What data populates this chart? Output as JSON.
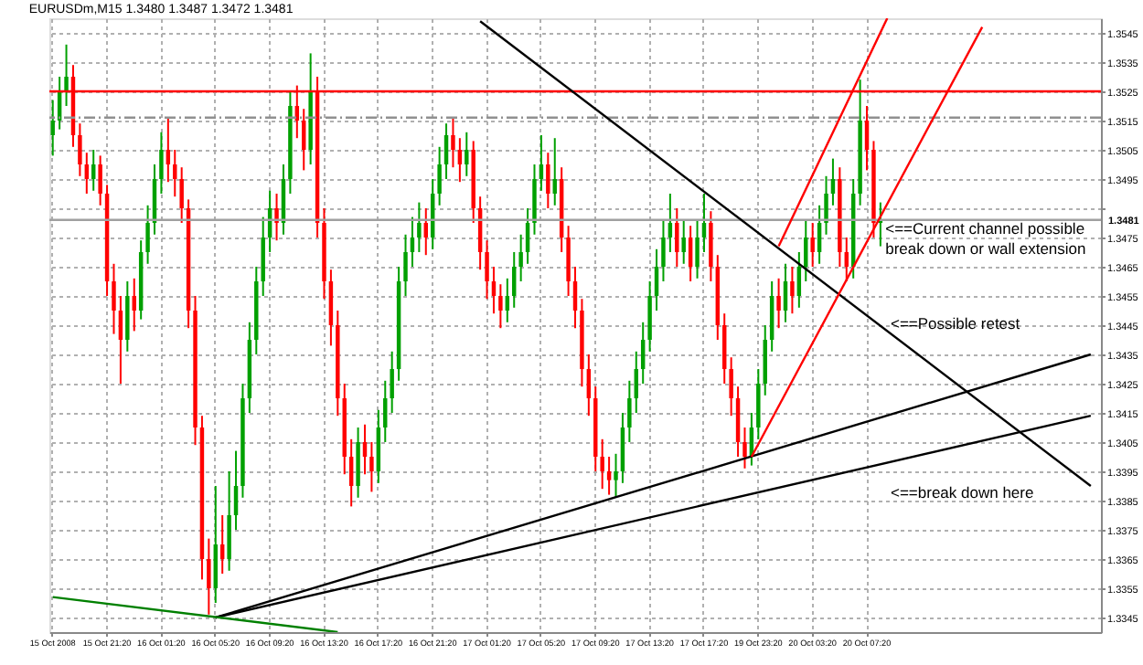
{
  "chart_data": {
    "type": "candlestick",
    "title": "EURUSDm,M15  1.3480 1.3487 1.3472 1.3481",
    "categories": [
      "15 Oct 2008",
      null,
      null,
      null,
      null,
      null,
      null,
      null,
      "15 Oct 21:20",
      null,
      null,
      null,
      null,
      null,
      null,
      null,
      "16 Oct 01:20",
      null,
      null,
      null,
      null,
      null,
      null,
      null,
      "16 Oct 05:20",
      null,
      null,
      null,
      null,
      null,
      null,
      null,
      "16 Oct 09:20",
      null,
      null,
      null,
      null,
      null,
      null,
      null,
      "16 Oct 13:20",
      null,
      null,
      null,
      null,
      null,
      null,
      null,
      "16 Oct 17:20",
      null,
      null,
      null,
      null,
      null,
      null,
      null,
      "16 Oct 21:20",
      null,
      null,
      null,
      null,
      null,
      null,
      null,
      "17 Oct 01:20",
      null,
      null,
      null,
      null,
      null,
      null,
      null,
      "17 Oct 05:20",
      null,
      null,
      null,
      null,
      null,
      null,
      null,
      "17 Oct 09:20",
      null,
      null,
      null,
      null,
      null,
      null,
      null,
      "17 Oct 13:20",
      null,
      null,
      null,
      null,
      null,
      null,
      null,
      "17 Oct 17:20",
      null,
      null,
      null,
      null,
      null,
      null,
      null,
      "19 Oct 23:20",
      null,
      null,
      null,
      null,
      null,
      null,
      null,
      "20 Oct 03:20",
      null,
      null,
      null,
      null,
      null,
      null,
      null,
      "20 Oct 07:20",
      null,
      null,
      null,
      null,
      null,
      null,
      null,
      null,
      null,
      null,
      null,
      null,
      null,
      null,
      null,
      null,
      null,
      null,
      null,
      null,
      null,
      null,
      null,
      null,
      null,
      null,
      null,
      null,
      null,
      null,
      null,
      null,
      null,
      null
    ],
    "ohlc": [
      [
        1.351,
        1.3522,
        1.3503,
        1.3515
      ],
      [
        1.3515,
        1.353,
        1.3512,
        1.3525
      ],
      [
        1.3525,
        1.3541,
        1.352,
        1.353
      ],
      [
        1.353,
        1.3534,
        1.3506,
        1.351
      ],
      [
        1.351,
        1.3514,
        1.3496,
        1.35
      ],
      [
        1.35,
        1.3504,
        1.349,
        1.3495
      ],
      [
        1.3495,
        1.3505,
        1.3491,
        1.35
      ],
      [
        1.35,
        1.3503,
        1.3486,
        1.349
      ],
      [
        1.349,
        1.3493,
        1.3455,
        1.346
      ],
      [
        1.346,
        1.3466,
        1.3442,
        1.345
      ],
      [
        1.345,
        1.3455,
        1.3425,
        1.344
      ],
      [
        1.344,
        1.346,
        1.3436,
        1.3455
      ],
      [
        1.3455,
        1.3461,
        1.3443,
        1.345
      ],
      [
        1.345,
        1.3474,
        1.3447,
        1.347
      ],
      [
        1.347,
        1.3486,
        1.3466,
        1.348
      ],
      [
        1.348,
        1.35,
        1.3476,
        1.3495
      ],
      [
        1.3495,
        1.3511,
        1.349,
        1.3505
      ],
      [
        1.3505,
        1.3516,
        1.3494,
        1.35
      ],
      [
        1.35,
        1.3505,
        1.3489,
        1.3495
      ],
      [
        1.3495,
        1.3499,
        1.348,
        1.3485
      ],
      [
        1.3485,
        1.3488,
        1.3444,
        1.345
      ],
      [
        1.345,
        1.3455,
        1.3404,
        1.341
      ],
      [
        1.341,
        1.3414,
        1.3358,
        1.3365
      ],
      [
        1.3365,
        1.3372,
        1.3346,
        1.3355
      ],
      [
        1.3355,
        1.339,
        1.335,
        1.337
      ],
      [
        1.337,
        1.338,
        1.336,
        1.3365
      ],
      [
        1.3365,
        1.3395,
        1.3361,
        1.338
      ],
      [
        1.338,
        1.3402,
        1.3375,
        1.339
      ],
      [
        1.339,
        1.3425,
        1.3386,
        1.342
      ],
      [
        1.342,
        1.3446,
        1.3415,
        1.344
      ],
      [
        1.344,
        1.3465,
        1.3435,
        1.346
      ],
      [
        1.346,
        1.3482,
        1.3455,
        1.3475
      ],
      [
        1.3475,
        1.3491,
        1.347,
        1.3485
      ],
      [
        1.3485,
        1.349,
        1.3474,
        1.348
      ],
      [
        1.348,
        1.35,
        1.3476,
        1.3495
      ],
      [
        1.3495,
        1.3525,
        1.349,
        1.352
      ],
      [
        1.352,
        1.3527,
        1.3509,
        1.3515
      ],
      [
        1.3515,
        1.3519,
        1.3498,
        1.3505
      ],
      [
        1.3505,
        1.3538,
        1.35,
        1.3525
      ],
      [
        1.3525,
        1.353,
        1.3475,
        1.348
      ],
      [
        1.348,
        1.3485,
        1.3454,
        1.346
      ],
      [
        1.346,
        1.3464,
        1.3438,
        1.3445
      ],
      [
        1.3445,
        1.345,
        1.3414,
        1.342
      ],
      [
        1.342,
        1.3425,
        1.3394,
        1.34
      ],
      [
        1.34,
        1.3406,
        1.3383,
        1.339
      ],
      [
        1.339,
        1.341,
        1.3386,
        1.3405
      ],
      [
        1.3405,
        1.3411,
        1.3394,
        1.34
      ],
      [
        1.34,
        1.3405,
        1.3388,
        1.3395
      ],
      [
        1.3395,
        1.3416,
        1.3391,
        1.341
      ],
      [
        1.341,
        1.3426,
        1.3405,
        1.342
      ],
      [
        1.342,
        1.3436,
        1.3415,
        1.343
      ],
      [
        1.343,
        1.3465,
        1.3426,
        1.346
      ],
      [
        1.346,
        1.3476,
        1.3455,
        1.347
      ],
      [
        1.347,
        1.3482,
        1.3465,
        1.3475
      ],
      [
        1.3475,
        1.3487,
        1.347,
        1.348
      ],
      [
        1.348,
        1.3485,
        1.3469,
        1.3475
      ],
      [
        1.3475,
        1.3495,
        1.3471,
        1.349
      ],
      [
        1.349,
        1.3506,
        1.3486,
        1.35
      ],
      [
        1.35,
        1.3514,
        1.3495,
        1.351
      ],
      [
        1.351,
        1.3516,
        1.3499,
        1.3505
      ],
      [
        1.3505,
        1.3509,
        1.3494,
        1.35
      ],
      [
        1.35,
        1.3511,
        1.3496,
        1.3505
      ],
      [
        1.3505,
        1.3508,
        1.348,
        1.3485
      ],
      [
        1.3485,
        1.3489,
        1.3464,
        1.347
      ],
      [
        1.347,
        1.3474,
        1.3454,
        1.346
      ],
      [
        1.346,
        1.3465,
        1.3449,
        1.3455
      ],
      [
        1.3455,
        1.3459,
        1.3444,
        1.345
      ],
      [
        1.345,
        1.3461,
        1.3446,
        1.3455
      ],
      [
        1.3455,
        1.347,
        1.3451,
        1.3465
      ],
      [
        1.3465,
        1.3476,
        1.346,
        1.347
      ],
      [
        1.347,
        1.3485,
        1.3466,
        1.348
      ],
      [
        1.348,
        1.35,
        1.3476,
        1.3495
      ],
      [
        1.3495,
        1.351,
        1.3491,
        1.35
      ],
      [
        1.35,
        1.3504,
        1.3485,
        1.349
      ],
      [
        1.349,
        1.3509,
        1.3486,
        1.3495
      ],
      [
        1.3495,
        1.3499,
        1.347,
        1.3475
      ],
      [
        1.3475,
        1.3479,
        1.3455,
        1.346
      ],
      [
        1.346,
        1.3465,
        1.3444,
        1.345
      ],
      [
        1.345,
        1.3454,
        1.3424,
        1.343
      ],
      [
        1.343,
        1.3435,
        1.3414,
        1.342
      ],
      [
        1.342,
        1.3424,
        1.3395,
        1.34
      ],
      [
        1.34,
        1.3406,
        1.3389,
        1.3395
      ],
      [
        1.3395,
        1.34,
        1.3387,
        1.3392
      ],
      [
        1.3392,
        1.3401,
        1.3386,
        1.3395
      ],
      [
        1.3395,
        1.3415,
        1.3391,
        1.341
      ],
      [
        1.341,
        1.3426,
        1.3405,
        1.342
      ],
      [
        1.342,
        1.3436,
        1.3415,
        1.343
      ],
      [
        1.343,
        1.3446,
        1.3425,
        1.344
      ],
      [
        1.344,
        1.346,
        1.3436,
        1.3455
      ],
      [
        1.3455,
        1.3471,
        1.345,
        1.3465
      ],
      [
        1.3465,
        1.3481,
        1.346,
        1.3475
      ],
      [
        1.3475,
        1.349,
        1.347,
        1.348
      ],
      [
        1.348,
        1.3485,
        1.3465,
        1.347
      ],
      [
        1.347,
        1.3481,
        1.3466,
        1.3475
      ],
      [
        1.3475,
        1.3479,
        1.346,
        1.3465
      ],
      [
        1.3465,
        1.3481,
        1.3461,
        1.3475
      ],
      [
        1.3475,
        1.349,
        1.347,
        1.348
      ],
      [
        1.348,
        1.3484,
        1.346,
        1.3465
      ],
      [
        1.3465,
        1.3469,
        1.344,
        1.3445
      ],
      [
        1.3445,
        1.3449,
        1.3425,
        1.343
      ],
      [
        1.343,
        1.3434,
        1.3414,
        1.342
      ],
      [
        1.342,
        1.3424,
        1.34,
        1.3405
      ],
      [
        1.3405,
        1.341,
        1.3396,
        1.34
      ],
      [
        1.34,
        1.3415,
        1.3397,
        1.341
      ],
      [
        1.341,
        1.343,
        1.3406,
        1.3425
      ],
      [
        1.3425,
        1.3445,
        1.3421,
        1.344
      ],
      [
        1.344,
        1.346,
        1.3436,
        1.3455
      ],
      [
        1.3455,
        1.3461,
        1.3444,
        1.345
      ],
      [
        1.345,
        1.3466,
        1.3446,
        1.346
      ],
      [
        1.346,
        1.3465,
        1.3449,
        1.3455
      ],
      [
        1.3455,
        1.347,
        1.3451,
        1.3465
      ],
      [
        1.3465,
        1.3481,
        1.346,
        1.3475
      ],
      [
        1.3475,
        1.348,
        1.3465,
        1.347
      ],
      [
        1.347,
        1.3486,
        1.3466,
        1.348
      ],
      [
        1.348,
        1.3496,
        1.3476,
        1.349
      ],
      [
        1.349,
        1.3502,
        1.3486,
        1.3495
      ],
      [
        1.3495,
        1.3499,
        1.3465,
        1.347
      ],
      [
        1.347,
        1.3475,
        1.346,
        1.3465
      ],
      [
        1.3465,
        1.3495,
        1.3461,
        1.349
      ],
      [
        1.349,
        1.3529,
        1.3486,
        1.3515
      ],
      [
        1.3515,
        1.352,
        1.3498,
        1.3505
      ],
      [
        1.3505,
        1.3508,
        1.3475,
        1.348
      ],
      [
        1.348,
        1.3487,
        1.3472,
        1.3481
      ],
      null,
      null,
      null,
      null,
      null,
      null,
      null,
      null,
      null,
      null,
      null,
      null,
      null,
      null,
      null,
      null,
      null,
      null,
      null,
      null,
      null,
      null,
      null,
      null,
      null,
      null,
      null,
      null,
      null,
      null,
      null,
      null
    ],
    "colors": [
      "#00a000",
      "#00a000",
      "#00a000",
      "#ff0000",
      "#ff0000",
      "#ff0000",
      "#00a000",
      "#ff0000",
      "#ff0000",
      "#ff0000",
      "#ff0000",
      "#00a000",
      "#ff0000",
      "#00a000",
      "#00a000",
      "#00a000",
      "#00a000",
      "#ff0000",
      "#ff0000",
      "#ff0000",
      "#ff0000",
      "#ff0000",
      "#ff0000",
      "#ff0000",
      "#00a000",
      "#ff0000",
      "#00a000",
      "#00a000",
      "#00a000",
      "#00a000",
      "#00a000",
      "#00a000",
      "#00a000",
      "#ff0000",
      "#00a000",
      "#00a000",
      "#ff0000",
      "#ff0000",
      "#00a000",
      "#ff0000",
      "#ff0000",
      "#ff0000",
      "#ff0000",
      "#ff0000",
      "#ff0000",
      "#00a000",
      "#ff0000",
      "#ff0000",
      "#00a000",
      "#00a000",
      "#00a000",
      "#00a000",
      "#00a000",
      "#00a000",
      "#00a000",
      "#ff0000",
      "#00a000",
      "#00a000",
      "#00a000",
      "#ff0000",
      "#ff0000",
      "#00a000",
      "#ff0000",
      "#ff0000",
      "#ff0000",
      "#ff0000",
      "#ff0000",
      "#00a000",
      "#00a000",
      "#00a000",
      "#00a000",
      "#00a000",
      "#00a000",
      "#ff0000",
      "#00a000",
      "#ff0000",
      "#ff0000",
      "#ff0000",
      "#ff0000",
      "#ff0000",
      "#ff0000",
      "#ff0000",
      "#ff0000",
      "#00a000",
      "#00a000",
      "#00a000",
      "#00a000",
      "#00a000",
      "#00a000",
      "#00a000",
      "#00a000",
      "#00a000",
      "#ff0000",
      "#00a000",
      "#ff0000",
      "#00a000",
      "#00a000",
      "#ff0000",
      "#ff0000",
      "#ff0000",
      "#ff0000",
      "#ff0000",
      "#ff0000",
      "#00a000",
      "#00a000",
      "#00a000",
      "#00a000",
      "#ff0000",
      "#00a000",
      "#ff0000",
      "#00a000",
      "#00a000",
      "#ff0000",
      "#00a000",
      "#00a000",
      "#00a000",
      "#ff0000",
      "#ff0000",
      "#00a000",
      "#00a000",
      "#ff0000",
      "#ff0000",
      "#00a000",
      null,
      null,
      null,
      null,
      null,
      null,
      null,
      null,
      null,
      null,
      null,
      null,
      null,
      null,
      null,
      null,
      null,
      null,
      null,
      null,
      null,
      null,
      null,
      null,
      null,
      null,
      null,
      null,
      null,
      null,
      null,
      null
    ],
    "series": [
      {
        "type": "line",
        "color": "#000000",
        "values": [
          null,
          null,
          null,
          null,
          null,
          null,
          null,
          null,
          null,
          null,
          null,
          null,
          null,
          null,
          null,
          null,
          null,
          null,
          null,
          null,
          null,
          null,
          null,
          null,
          null,
          null,
          null,
          null,
          null,
          null,
          null,
          null,
          null,
          null,
          null,
          null,
          null,
          null,
          null,
          null,
          null,
          null,
          null,
          null,
          null,
          null,
          null,
          null,
          null,
          null,
          null,
          null,
          null,
          null,
          null,
          null,
          null,
          null,
          null,
          null,
          null,
          null,
          null,
          1.3549,
          null,
          null,
          null,
          null,
          null,
          null,
          null,
          null,
          null,
          null,
          null,
          null,
          null,
          null,
          null,
          null,
          null,
          null,
          null,
          null,
          null,
          null,
          null,
          null,
          null,
          null,
          null,
          null,
          null,
          null,
          null,
          null,
          null,
          null,
          null,
          null,
          null,
          null,
          null,
          null,
          null,
          null,
          null,
          null,
          null,
          null,
          null,
          null,
          null,
          null,
          null,
          null,
          null,
          null,
          null,
          null,
          null,
          null,
          null,
          null,
          null,
          null,
          null,
          null,
          null,
          null,
          null,
          null,
          null,
          null,
          null,
          null,
          null,
          null,
          null,
          null,
          null,
          null,
          null,
          null,
          null,
          null,
          null,
          null,
          null,
          null,
          null,
          null,
          null,
          1.339,
          null
        ]
      },
      {
        "type": "line",
        "color": "#000000",
        "values": [
          null,
          null,
          null,
          null,
          null,
          null,
          null,
          null,
          null,
          null,
          null,
          null,
          null,
          null,
          null,
          null,
          null,
          null,
          null,
          null,
          null,
          null,
          null,
          null,
          1.3345,
          null,
          null,
          null,
          null,
          null,
          null,
          null,
          null,
          null,
          null,
          null,
          null,
          null,
          null,
          null,
          null,
          null,
          null,
          null,
          null,
          null,
          null,
          null,
          null,
          null,
          null,
          null,
          null,
          null,
          null,
          null,
          null,
          null,
          null,
          null,
          null,
          null,
          null,
          null,
          null,
          null,
          null,
          null,
          null,
          null,
          null,
          null,
          null,
          null,
          null,
          null,
          null,
          null,
          null,
          null,
          null,
          null,
          null,
          null,
          null,
          null,
          null,
          null,
          null,
          null,
          null,
          null,
          null,
          null,
          null,
          null,
          null,
          null,
          null,
          null,
          null,
          null,
          null,
          null,
          null,
          null,
          null,
          null,
          null,
          null,
          null,
          null,
          null,
          null,
          null,
          null,
          null,
          null,
          null,
          null,
          null,
          null,
          null,
          null,
          null,
          null,
          null,
          null,
          null,
          null,
          null,
          null,
          null,
          null,
          null,
          null,
          null,
          null,
          null,
          null,
          null,
          null,
          null,
          null,
          null,
          null,
          null,
          null,
          null,
          null,
          null,
          null,
          null,
          1.3435,
          null
        ]
      },
      {
        "type": "line",
        "color": "#000000",
        "values": [
          null,
          null,
          null,
          null,
          null,
          null,
          null,
          null,
          null,
          null,
          null,
          null,
          null,
          null,
          null,
          null,
          null,
          null,
          null,
          null,
          null,
          null,
          null,
          null,
          1.3345,
          null,
          null,
          null,
          null,
          null,
          null,
          null,
          null,
          null,
          null,
          null,
          null,
          null,
          null,
          null,
          null,
          null,
          null,
          null,
          null,
          null,
          null,
          null,
          null,
          null,
          null,
          null,
          null,
          null,
          null,
          null,
          null,
          null,
          null,
          null,
          null,
          null,
          null,
          null,
          null,
          null,
          null,
          null,
          null,
          null,
          null,
          null,
          null,
          null,
          null,
          null,
          null,
          null,
          null,
          null,
          null,
          null,
          null,
          null,
          null,
          null,
          null,
          null,
          null,
          null,
          null,
          null,
          null,
          null,
          null,
          null,
          null,
          null,
          null,
          null,
          null,
          null,
          null,
          null,
          null,
          null,
          null,
          null,
          null,
          null,
          null,
          null,
          null,
          null,
          null,
          null,
          null,
          null,
          null,
          null,
          null,
          null,
          null,
          null,
          null,
          null,
          null,
          null,
          null,
          null,
          null,
          null,
          null,
          null,
          null,
          null,
          null,
          null,
          null,
          null,
          null,
          null,
          null,
          null,
          null,
          null,
          null,
          null,
          null,
          null,
          null,
          null,
          null,
          1.3414,
          null
        ]
      },
      {
        "type": "line",
        "color": "#008000",
        "values": [
          1.3352,
          null,
          null,
          null,
          null,
          null,
          null,
          null,
          null,
          null,
          null,
          null,
          null,
          null,
          null,
          null,
          null,
          null,
          null,
          null,
          null,
          null,
          null,
          null,
          null,
          null,
          null,
          null,
          null,
          null,
          null,
          null,
          null,
          null,
          null,
          null,
          null,
          null,
          null,
          null,
          null,
          null,
          1.334,
          null,
          null,
          null,
          null,
          null,
          null,
          null,
          null,
          null,
          null,
          null,
          null,
          null,
          null,
          null,
          null,
          null,
          null,
          null,
          null,
          null,
          null,
          null,
          null,
          null,
          null,
          null,
          null,
          null,
          null,
          null,
          null,
          null,
          null,
          null,
          null,
          null,
          null,
          null,
          null,
          null,
          null,
          null,
          null,
          null,
          null,
          null,
          null,
          null,
          null,
          null,
          null,
          null,
          null,
          null,
          null,
          null,
          null,
          null,
          null,
          null,
          null,
          null,
          null,
          null,
          null,
          null,
          null,
          null,
          null,
          null,
          null,
          null,
          null,
          null,
          null,
          null,
          null,
          null,
          null,
          null,
          null,
          null,
          null,
          null,
          null,
          null,
          null,
          null,
          null,
          null,
          null,
          null,
          null,
          null,
          null,
          null,
          null,
          null,
          null,
          null,
          null,
          null,
          null,
          null,
          null,
          null,
          null,
          null,
          null,
          null,
          null
        ]
      },
      {
        "type": "line",
        "color": "#ff0000",
        "values": [
          null,
          null,
          null,
          null,
          null,
          null,
          null,
          null,
          null,
          null,
          null,
          null,
          null,
          null,
          null,
          null,
          null,
          null,
          null,
          null,
          null,
          null,
          null,
          null,
          null,
          null,
          null,
          null,
          null,
          null,
          null,
          null,
          null,
          null,
          null,
          null,
          null,
          null,
          null,
          null,
          null,
          null,
          null,
          null,
          null,
          null,
          null,
          null,
          null,
          null,
          null,
          null,
          null,
          null,
          null,
          null,
          null,
          null,
          null,
          null,
          null,
          null,
          null,
          null,
          null,
          null,
          null,
          null,
          null,
          null,
          null,
          null,
          null,
          null,
          null,
          null,
          null,
          null,
          null,
          null,
          null,
          null,
          null,
          null,
          null,
          null,
          null,
          null,
          null,
          null,
          null,
          null,
          null,
          null,
          null,
          null,
          null,
          null,
          null,
          null,
          null,
          null,
          null,
          1.34,
          null,
          null,
          null,
          null,
          null,
          null,
          null,
          null,
          null,
          null,
          null,
          null,
          null,
          null,
          null,
          null,
          null,
          null,
          null,
          null,
          null,
          null,
          null,
          null,
          null,
          null,
          null,
          null,
          null,
          null,
          null,
          null,
          null,
          1.3547,
          null,
          null,
          null,
          null,
          null,
          null,
          null,
          null,
          null,
          null,
          null,
          null,
          null,
          null,
          null,
          null,
          null
        ]
      },
      {
        "type": "line",
        "color": "#ff0000",
        "values": [
          null,
          null,
          null,
          null,
          null,
          null,
          null,
          null,
          null,
          null,
          null,
          null,
          null,
          null,
          null,
          null,
          null,
          null,
          null,
          null,
          null,
          null,
          null,
          null,
          null,
          null,
          null,
          null,
          null,
          null,
          null,
          null,
          null,
          null,
          null,
          null,
          null,
          null,
          null,
          null,
          null,
          null,
          null,
          null,
          null,
          null,
          null,
          null,
          null,
          null,
          null,
          null,
          null,
          null,
          null,
          null,
          null,
          null,
          null,
          null,
          null,
          null,
          null,
          null,
          null,
          null,
          null,
          null,
          null,
          null,
          null,
          null,
          null,
          null,
          null,
          null,
          null,
          null,
          null,
          null,
          null,
          null,
          null,
          null,
          null,
          null,
          null,
          null,
          null,
          null,
          null,
          null,
          null,
          null,
          null,
          null,
          null,
          null,
          null,
          null,
          null,
          null,
          null,
          null,
          null,
          null,
          null,
          1.3472,
          null,
          null,
          null,
          null,
          null,
          null,
          null,
          null,
          null,
          null,
          null,
          null,
          null,
          null,
          null,
          1.355,
          null,
          null,
          null,
          null,
          null,
          null,
          null,
          null,
          null,
          null,
          null,
          null,
          null,
          null,
          null,
          null,
          null,
          null,
          null,
          null,
          null,
          null,
          null,
          null,
          null,
          null,
          null,
          null,
          null,
          null,
          null
        ]
      }
    ],
    "ref_lines": [
      {
        "axis": "y",
        "value": 1.3525,
        "color": "#ff0000",
        "line_style": "solid"
      },
      {
        "axis": "y",
        "value": 1.3516,
        "color": "#909090",
        "line_style": "dashed"
      },
      {
        "axis": "y",
        "value": 1.3481,
        "color": "#a0a0a0",
        "line_style": "solid",
        "label": "1.3481"
      }
    ],
    "annotations": [
      "<==Current channel possible\nbreak down or wall extension",
      "<==Possible retest",
      "<==break down here"
    ],
    "ylim": [
      1.334,
      1.355
    ],
    "yticks": [
      1.3345,
      1.3355,
      1.3365,
      1.3375,
      1.3385,
      1.3395,
      1.3405,
      1.3415,
      1.3425,
      1.3435,
      1.3445,
      1.3455,
      1.3465,
      1.3475,
      {
        "value": 1.3485,
        "label": null
      },
      1.3495,
      1.3505,
      1.3515,
      1.3525,
      1.3535,
      1.3545
    ],
    "grid": true
  }
}
